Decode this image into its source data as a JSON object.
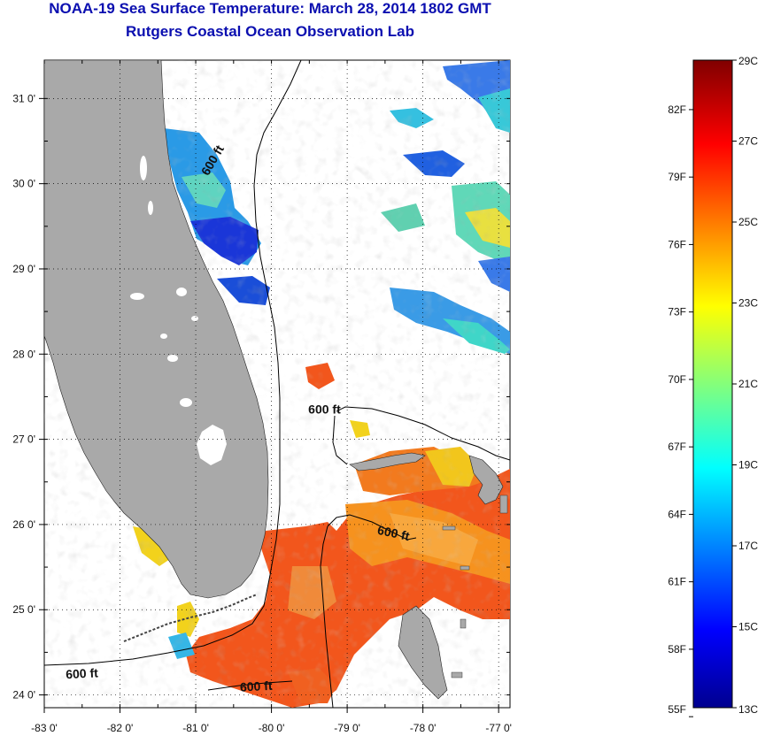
{
  "header": {
    "title": "NOAA-19 Sea Surface Temperature:  March 28, 2014 1802 GMT",
    "subtitle": "Rutgers Coastal Ocean Observation Lab"
  },
  "map": {
    "lon_range": [
      -83,
      -76.85
    ],
    "lat_range": [
      23.85,
      31.45
    ],
    "lon_ticks": [
      {
        "value": -83,
        "label": "-83 0'"
      },
      {
        "value": -82,
        "label": "-82 0'"
      },
      {
        "value": -81,
        "label": "-81 0'"
      },
      {
        "value": -80,
        "label": "-80 0'"
      },
      {
        "value": -79,
        "label": "-79 0'"
      },
      {
        "value": -78,
        "label": "-78 0'"
      },
      {
        "value": -77,
        "label": "-77 0'"
      }
    ],
    "lat_ticks": [
      {
        "value": 24,
        "label": "24 0'"
      },
      {
        "value": 25,
        "label": "25 0'"
      },
      {
        "value": 26,
        "label": "26 0'"
      },
      {
        "value": 27,
        "label": "27 0'"
      },
      {
        "value": 28,
        "label": "28 0'"
      },
      {
        "value": 29,
        "label": "29 0'"
      },
      {
        "value": 30,
        "label": "30 0'"
      },
      {
        "value": 31,
        "label": "31 0'"
      }
    ],
    "contour_labels": [
      {
        "text": "600 ft",
        "lon": -80.73,
        "lat": 30.25,
        "rotate": -60
      },
      {
        "text": "600 ft",
        "lon": -79.3,
        "lat": 27.3,
        "rotate": 0
      },
      {
        "text": "600 ft",
        "lon": -78.4,
        "lat": 25.85,
        "rotate": 12
      },
      {
        "text": "600 ft",
        "lon": -82.5,
        "lat": 24.2,
        "rotate": -3
      },
      {
        "text": "600 ft",
        "lon": -80.2,
        "lat": 24.05,
        "rotate": -3
      }
    ],
    "colors": {
      "land": "#a9a9a9",
      "ocean_nodata": "#ffffff",
      "contour": "#000000",
      "sst_warm": "#f2561c",
      "sst_orange": "#f6921e",
      "sst_yellow": "#f2e61c",
      "sst_cyan": "#3ab6e6",
      "sst_blue": "#1f4ee0",
      "sst_darkblue": "#1010c8"
    }
  },
  "colorbar": {
    "celsius_range": [
      13,
      29
    ],
    "celsius_labels": [
      "29C",
      "27C",
      "25C",
      "23C",
      "21C",
      "19C",
      "17C",
      "15C",
      "13C"
    ],
    "fahrenheit_labels": [
      "82F",
      "79F",
      "76F",
      "73F",
      "70F",
      "67F",
      "64F",
      "61F",
      "58F",
      "55F"
    ],
    "fahrenheit_values": [
      82,
      79,
      76,
      73,
      70,
      67,
      64,
      61,
      58,
      55
    ]
  }
}
